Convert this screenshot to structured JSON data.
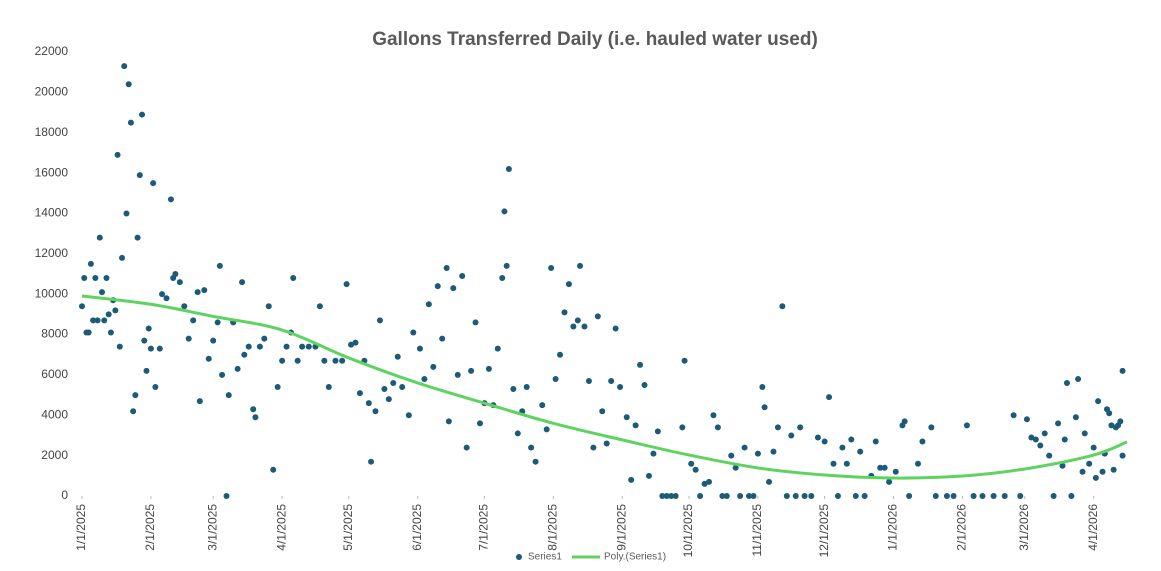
{
  "chart_data": {
    "type": "scatter",
    "title": "Gallons Transferred Daily     (i.e. hauled water used)",
    "xlim": [
      "2025-01-01",
      "2026-04-16"
    ],
    "xticks": [
      {
        "value": "2025-01-01",
        "label": "1/1/2025"
      },
      {
        "value": "2025-02-01",
        "label": "2/1/2025"
      },
      {
        "value": "2025-03-01",
        "label": "3/1/2025"
      },
      {
        "value": "2025-04-01",
        "label": "4/1/2025"
      },
      {
        "value": "2025-05-01",
        "label": "5/1/2025"
      },
      {
        "value": "2025-06-01",
        "label": "6/1/2025"
      },
      {
        "value": "2025-07-01",
        "label": "7/1/2025"
      },
      {
        "value": "2025-08-01",
        "label": "8/1/2025"
      },
      {
        "value": "2025-09-01",
        "label": "9/1/2025"
      },
      {
        "value": "2025-10-01",
        "label": "10/1/2025"
      },
      {
        "value": "2025-11-01",
        "label": "11/1/2025"
      },
      {
        "value": "2025-12-01",
        "label": "12/1/2025"
      },
      {
        "value": "2026-01-01",
        "label": "1/1/2026"
      },
      {
        "value": "2026-02-01",
        "label": "2/1/2026"
      },
      {
        "value": "2026-03-01",
        "label": "3/1/2026"
      },
      {
        "value": "2026-04-01",
        "label": "4/1/2026"
      }
    ],
    "ylim": [
      0,
      22000
    ],
    "yticks": [
      0,
      2000,
      4000,
      6000,
      8000,
      10000,
      12000,
      14000,
      16000,
      18000,
      20000,
      22000
    ],
    "grid": false,
    "legend": "bottom",
    "series": [
      {
        "name": "Series1",
        "color": "#1c5b78",
        "x": [
          "2025-01-01",
          "2025-01-02",
          "2025-01-03",
          "2025-01-04",
          "2025-01-05",
          "2025-01-06",
          "2025-01-07",
          "2025-01-08",
          "2025-01-09",
          "2025-01-10",
          "2025-01-11",
          "2025-01-12",
          "2025-01-13",
          "2025-01-14",
          "2025-01-15",
          "2025-01-16",
          "2025-01-17",
          "2025-01-18",
          "2025-01-19",
          "2025-01-20",
          "2025-01-21",
          "2025-01-22",
          "2025-01-23",
          "2025-01-24",
          "2025-01-25",
          "2025-01-26",
          "2025-01-27",
          "2025-01-28",
          "2025-01-29",
          "2025-01-30",
          "2025-01-31",
          "2025-02-01",
          "2025-02-02",
          "2025-02-03",
          "2025-02-05",
          "2025-02-06",
          "2025-02-08",
          "2025-02-10",
          "2025-02-11",
          "2025-02-12",
          "2025-02-14",
          "2025-02-16",
          "2025-02-18",
          "2025-02-20",
          "2025-02-22",
          "2025-02-23",
          "2025-02-25",
          "2025-02-27",
          "2025-03-01",
          "2025-03-03",
          "2025-03-04",
          "2025-03-05",
          "2025-03-07",
          "2025-03-08",
          "2025-03-10",
          "2025-03-12",
          "2025-03-14",
          "2025-03-15",
          "2025-03-17",
          "2025-03-19",
          "2025-03-20",
          "2025-03-22",
          "2025-03-24",
          "2025-03-26",
          "2025-03-28",
          "2025-03-30",
          "2025-04-01",
          "2025-04-03",
          "2025-04-05",
          "2025-04-06",
          "2025-04-08",
          "2025-04-10",
          "2025-04-13",
          "2025-04-16",
          "2025-04-18",
          "2025-04-20",
          "2025-04-22",
          "2025-04-25",
          "2025-04-28",
          "2025-04-30",
          "2025-05-02",
          "2025-05-04",
          "2025-05-06",
          "2025-05-08",
          "2025-05-10",
          "2025-05-11",
          "2025-05-13",
          "2025-05-15",
          "2025-05-17",
          "2025-05-19",
          "2025-05-21",
          "2025-05-23",
          "2025-05-25",
          "2025-05-28",
          "2025-05-30",
          "2025-06-02",
          "2025-06-04",
          "2025-06-06",
          "2025-06-08",
          "2025-06-10",
          "2025-06-12",
          "2025-06-14",
          "2025-06-15",
          "2025-06-17",
          "2025-06-19",
          "2025-06-21",
          "2025-06-23",
          "2025-06-25",
          "2025-06-27",
          "2025-06-29",
          "2025-07-01",
          "2025-07-03",
          "2025-07-05",
          "2025-07-07",
          "2025-07-09",
          "2025-07-10",
          "2025-07-11",
          "2025-07-12",
          "2025-07-14",
          "2025-07-16",
          "2025-07-18",
          "2025-07-20",
          "2025-07-22",
          "2025-07-24",
          "2025-07-27",
          "2025-07-29",
          "2025-07-31",
          "2025-08-02",
          "2025-08-04",
          "2025-08-06",
          "2025-08-08",
          "2025-08-10",
          "2025-08-12",
          "2025-08-13",
          "2025-08-15",
          "2025-08-17",
          "2025-08-19",
          "2025-08-21",
          "2025-08-23",
          "2025-08-25",
          "2025-08-27",
          "2025-08-29",
          "2025-08-31",
          "2025-09-03",
          "2025-09-05",
          "2025-09-07",
          "2025-09-09",
          "2025-09-11",
          "2025-09-13",
          "2025-09-15",
          "2025-09-17",
          "2025-09-19",
          "2025-09-21",
          "2025-09-23",
          "2025-09-25",
          "2025-09-28",
          "2025-09-29",
          "2025-10-02",
          "2025-10-04",
          "2025-10-06",
          "2025-10-08",
          "2025-10-10",
          "2025-10-12",
          "2025-10-14",
          "2025-10-16",
          "2025-10-18",
          "2025-10-20",
          "2025-10-22",
          "2025-10-24",
          "2025-10-26",
          "2025-10-28",
          "2025-10-30",
          "2025-11-01",
          "2025-11-03",
          "2025-11-04",
          "2025-11-06",
          "2025-11-08",
          "2025-11-10",
          "2025-11-12",
          "2025-11-14",
          "2025-11-16",
          "2025-11-18",
          "2025-11-20",
          "2025-11-22",
          "2025-11-25",
          "2025-11-28",
          "2025-12-01",
          "2025-12-03",
          "2025-12-05",
          "2025-12-07",
          "2025-12-09",
          "2025-12-11",
          "2025-12-13",
          "2025-12-15",
          "2025-12-17",
          "2025-12-19",
          "2025-12-22",
          "2025-12-24",
          "2025-12-26",
          "2025-12-28",
          "2025-12-30",
          "2026-01-02",
          "2026-01-05",
          "2026-01-06",
          "2026-01-08",
          "2026-01-12",
          "2026-01-14",
          "2026-01-18",
          "2026-01-20",
          "2026-01-25",
          "2026-01-28",
          "2026-02-03",
          "2026-02-06",
          "2026-02-10",
          "2026-02-15",
          "2026-02-20",
          "2026-02-24",
          "2026-02-27",
          "2026-03-02",
          "2026-03-04",
          "2026-03-06",
          "2026-03-08",
          "2026-03-10",
          "2026-03-12",
          "2026-03-14",
          "2026-03-16",
          "2026-03-18",
          "2026-03-19",
          "2026-03-20",
          "2026-03-22",
          "2026-03-24",
          "2026-03-25",
          "2026-03-27",
          "2026-03-28",
          "2026-03-30",
          "2026-04-01",
          "2026-04-02",
          "2026-04-03",
          "2026-04-05",
          "2026-04-06",
          "2026-04-07",
          "2026-04-08",
          "2026-04-09",
          "2026-04-10",
          "2026-04-11",
          "2026-04-12",
          "2026-04-13",
          "2026-04-14",
          "2026-04-14"
        ],
        "values": [
          9400,
          10800,
          8100,
          8100,
          11500,
          8700,
          10800,
          8700,
          12800,
          10100,
          8700,
          10800,
          9000,
          8100,
          9700,
          9200,
          16900,
          7400,
          11800,
          21300,
          14000,
          20400,
          18500,
          4200,
          5000,
          12800,
          15900,
          18900,
          7700,
          6200,
          8300,
          7300,
          15500,
          5400,
          7300,
          10000,
          9800,
          14700,
          10800,
          11000,
          10600,
          9400,
          7800,
          8700,
          10100,
          4700,
          10200,
          6800,
          7700,
          8600,
          11400,
          6000,
          0,
          5000,
          8600,
          6300,
          10600,
          7000,
          7400,
          4300,
          3900,
          7400,
          7800,
          9400,
          1300,
          5400,
          6700,
          7400,
          8100,
          10800,
          6700,
          7400,
          7400,
          7400,
          9400,
          6700,
          5400,
          6700,
          6700,
          10500,
          7500,
          7600,
          5100,
          6700,
          4600,
          1700,
          4200,
          8700,
          5300,
          4800,
          5600,
          6900,
          5400,
          4000,
          8100,
          7300,
          5800,
          9500,
          6400,
          10400,
          7800,
          11300,
          3700,
          10300,
          6000,
          10900,
          2400,
          6200,
          8600,
          3600,
          4600,
          6300,
          4500,
          7300,
          10800,
          14100,
          11400,
          16200,
          5300,
          3100,
          4200,
          5400,
          2400,
          1700,
          4500,
          3300,
          11300,
          5800,
          7000,
          9100,
          10500,
          8400,
          8700,
          11400,
          8400,
          5700,
          2400,
          8900,
          4200,
          2600,
          5700,
          8300,
          5400,
          3900,
          800,
          3500,
          6500,
          5500,
          1000,
          2100,
          3200,
          0,
          0,
          0,
          0,
          3400,
          6700,
          1600,
          1300,
          0,
          600,
          700,
          4000,
          3400,
          0,
          0,
          2000,
          1400,
          0,
          2400,
          0,
          0,
          2100,
          5400,
          4400,
          700,
          2200,
          3400,
          9400,
          0,
          3000,
          0,
          3400,
          0,
          0,
          2900,
          2700,
          4900,
          1600,
          0,
          2400,
          1600,
          2800,
          0,
          2200,
          0,
          1000,
          2700,
          1400,
          1400,
          700,
          1200,
          3500,
          3700,
          0,
          1600,
          2700,
          3400,
          0,
          0,
          0,
          3500,
          0,
          0,
          0,
          0,
          4000,
          0,
          3800,
          2900,
          2800,
          2500,
          3100,
          2000,
          0,
          3600,
          1500,
          2800,
          5600,
          0,
          3900,
          5800,
          1200,
          3100,
          1600,
          2400,
          900,
          4700,
          1200,
          2100,
          4300,
          4100,
          3500,
          1300,
          3400,
          3500,
          3700,
          6200,
          2000
        ]
      },
      {
        "name": "Poly.(Series1)",
        "color": "#5fd35f",
        "type": "line",
        "x": [
          "2025-01-01",
          "2025-02-01",
          "2025-03-01",
          "2025-04-01",
          "2025-05-01",
          "2025-06-01",
          "2025-07-01",
          "2025-08-01",
          "2025-09-01",
          "2025-10-01",
          "2025-11-01",
          "2025-12-01",
          "2026-01-01",
          "2026-02-01",
          "2026-03-01",
          "2026-04-01",
          "2026-04-16"
        ],
        "values": [
          9910,
          9500,
          8900,
          8225,
          6840,
          5600,
          4600,
          3600,
          2780,
          2030,
          1390,
          1040,
          890,
          990,
          1340,
          2030,
          2680
        ]
      }
    ]
  }
}
